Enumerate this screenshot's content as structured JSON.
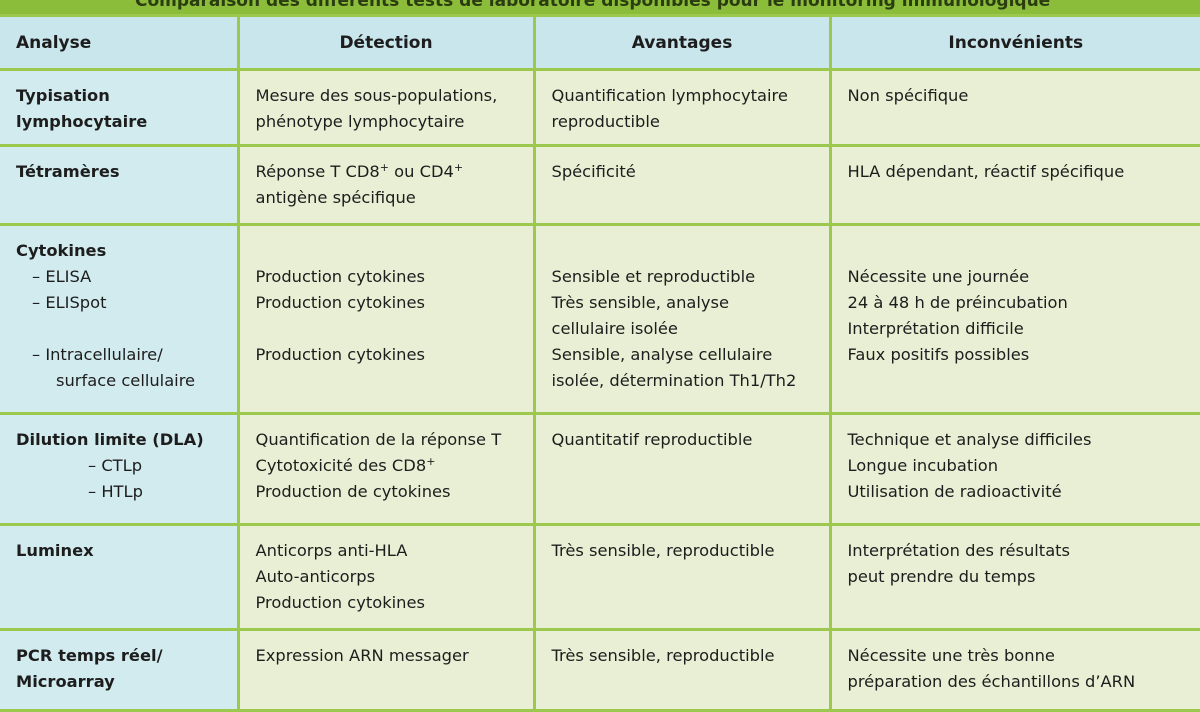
{
  "title": "Comparaison des différents tests de laboratoire disponibles pour le monitoring immunologique",
  "headers": [
    "Analyse",
    "Détection",
    "Avantages",
    "Inconvénients"
  ],
  "rows": [
    {
      "analyse": [
        "Typisation",
        "lymphocytaire"
      ],
      "detection": [
        "Mesure des sous-populations,",
        "phénotype lymphocytaire"
      ],
      "avantages": [
        "Quantification lymphocytaire",
        "reproductible"
      ],
      "inconvenients": [
        "Non spécifique"
      ]
    },
    {
      "analyse": [
        "Tétramères"
      ],
      "detection_a": "Réponse T CD8",
      "detection_b": " ou CD4",
      "detection_c": "antigène spécifique",
      "sup": "+",
      "avantages": [
        "Spécificité"
      ],
      "inconvenients": [
        "HLA dépendant, réactif spécifique"
      ]
    },
    {
      "analyse": [
        "Cytokines",
        "– ELISA",
        "– ELISpot",
        "– Intracellulaire/",
        "surface cellulaire"
      ],
      "detection": [
        "Production cytokines",
        "Production cytokines",
        "Production cytokines"
      ],
      "avantages": [
        "Sensible et reproductible",
        "Très sensible, analyse",
        "cellulaire isolée",
        "Sensible, analyse cellulaire",
        "isolée, détermination Th1/Th2"
      ],
      "inconvenients": [
        "Nécessite une journée",
        "24 à 48 h de préincubation",
        "Interprétation difficile",
        "Faux positifs possibles"
      ]
    },
    {
      "analyse": [
        "Dilution limite (DLA)",
        "– CTLp",
        "– HTLp"
      ],
      "detection": [
        "Quantification de la réponse T",
        "Cytotoxicité des CD8",
        "Production de cytokines"
      ],
      "avantages": [
        "Quantitatif reproductible"
      ],
      "inconvenients": [
        "Technique et analyse difficiles",
        "Longue incubation",
        "Utilisation de radioactivité"
      ]
    },
    {
      "analyse": [
        "Luminex"
      ],
      "detection": [
        "Anticorps anti-HLA",
        "Auto-anticorps",
        "Production cytokines"
      ],
      "avantages": [
        "Très sensible, reproductible"
      ],
      "inconvenients": [
        "Interprétation des résultats",
        "peut prendre du temps"
      ]
    },
    {
      "analyse": [
        "PCR temps réel/",
        "Microarray"
      ],
      "detection": [
        "Expression ARN messager"
      ],
      "avantages": [
        "Très sensible, reproductible"
      ],
      "inconvenients": [
        "Nécessite une très bonne",
        "préparation des échantillons d’ARN"
      ]
    }
  ],
  "colors": {
    "border": "#9cc84e",
    "header_bg": "#c9e6ec",
    "first_col_bg": "#d2ebef",
    "cell_bg": "#e9efd4",
    "title_bar": "#8bbd3a"
  }
}
